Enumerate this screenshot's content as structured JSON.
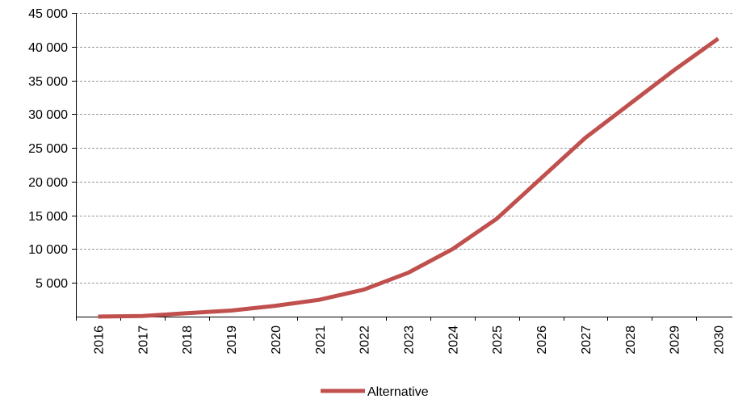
{
  "chart_data": {
    "type": "line",
    "x": [
      "2016",
      "2017",
      "2018",
      "2019",
      "2020",
      "2021",
      "2022",
      "2023",
      "2024",
      "2025",
      "2026",
      "2027",
      "2028",
      "2029",
      "2030"
    ],
    "series": [
      {
        "name": "Alternative",
        "color": "#c0504d",
        "values": [
          0,
          100,
          500,
          900,
          1600,
          2500,
          4000,
          6500,
          10000,
          14500,
          20500,
          26500,
          31500,
          36500,
          41200
        ]
      }
    ],
    "ylim": [
      0,
      45000
    ],
    "yticks": [
      {
        "value": 5000,
        "label": "5 000"
      },
      {
        "value": 10000,
        "label": "10 000"
      },
      {
        "value": 15000,
        "label": "15 000"
      },
      {
        "value": 20000,
        "label": "20 000"
      },
      {
        "value": 25000,
        "label": "25 000"
      },
      {
        "value": 30000,
        "label": "30 000"
      },
      {
        "value": 35000,
        "label": "35 000"
      },
      {
        "value": 40000,
        "label": "40 000"
      },
      {
        "value": 45000,
        "label": "45 000"
      }
    ],
    "grid": true,
    "legend_position": "bottom",
    "title": "",
    "xlabel": "",
    "ylabel": ""
  }
}
